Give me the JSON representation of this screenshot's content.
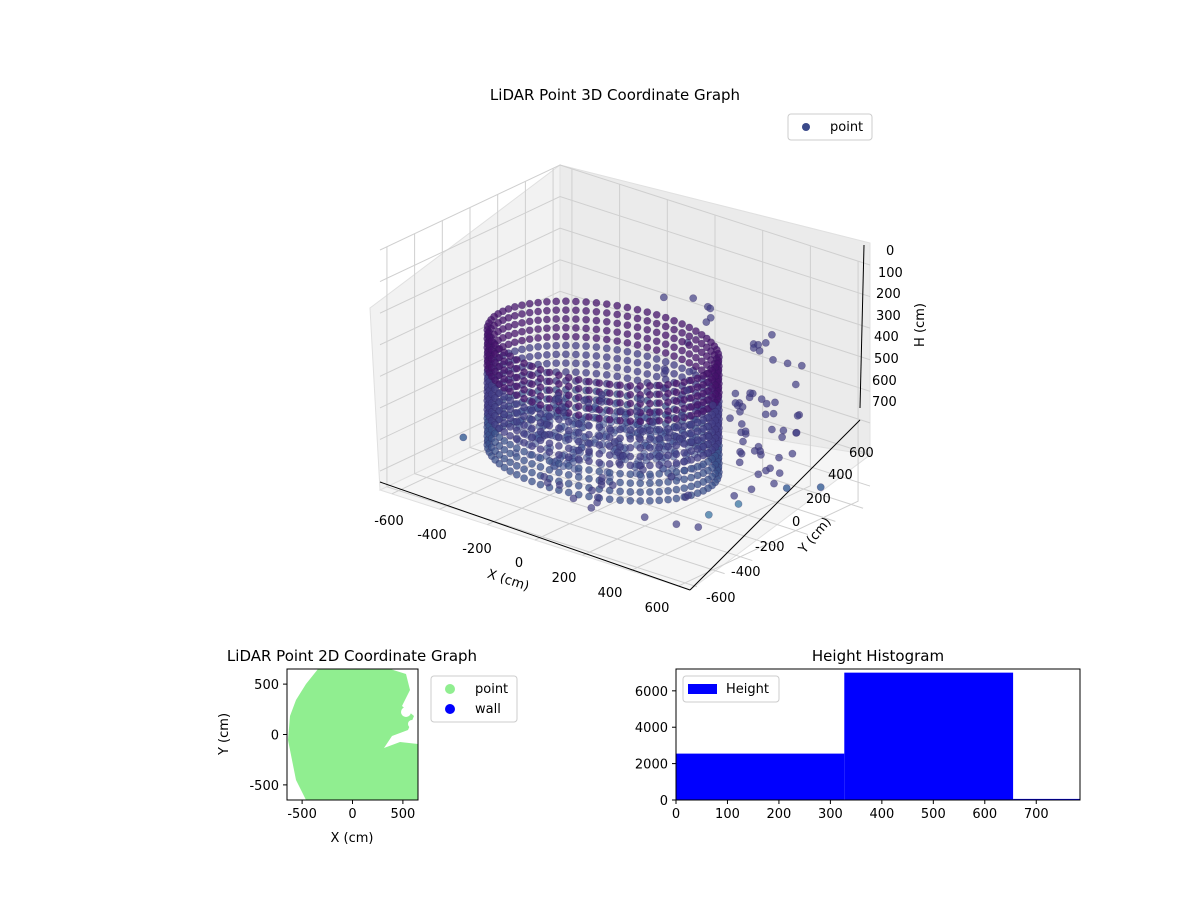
{
  "chart_data": [
    {
      "type": "scatter",
      "title": "LiDAR Point 3D Coordinate Graph",
      "xlabel": "X (cm)",
      "ylabel": "Y (cm)",
      "zlabel": "H (cm)",
      "legend": {
        "entries": [
          "point"
        ],
        "placement": "top-right"
      },
      "xlim": [
        -650,
        650
      ],
      "ylim": [
        -650,
        650
      ],
      "zlim": [
        760,
        0
      ],
      "x_ticks": [
        "-600",
        "-400",
        "-200",
        "0",
        "200",
        "400",
        "600"
      ],
      "y_ticks": [
        "-600",
        "-400",
        "-200",
        "0",
        "200",
        "400",
        "600"
      ],
      "z_ticks": [
        "0",
        "100",
        "200",
        "300",
        "400",
        "500",
        "600",
        "700"
      ],
      "grid": true,
      "colormap": "viridis",
      "series": [
        {
          "name": "point",
          "shape": "ring-wall",
          "ring_center": [
            -150,
            100
          ],
          "ring_radius": 420,
          "h_range": [
            320,
            700
          ],
          "color": "#3b4a8a"
        },
        {
          "name": "point",
          "shape": "floor",
          "floor_h": 620,
          "color": "#4a5b9a"
        }
      ],
      "outliers": [
        {
          "x": 700,
          "y": -600,
          "h": 520,
          "color": "#5a8cb0"
        },
        {
          "x": 650,
          "y": -300,
          "h": 560,
          "color": "#5a8cb0"
        },
        {
          "x": 620,
          "y": 100,
          "h": 600,
          "color": "#4a6ea0"
        },
        {
          "x": -620,
          "y": -100,
          "h": 700,
          "color": "#4a6ea0"
        },
        {
          "x": 600,
          "y": 380,
          "h": 660,
          "color": "#4a6ea0"
        }
      ]
    },
    {
      "type": "scatter",
      "title": "LiDAR Point 2D Coordinate Graph",
      "xlabel": "X (cm)",
      "ylabel": "Y (cm)",
      "xlim": [
        -650,
        650
      ],
      "ylim": [
        -650,
        650
      ],
      "x_ticks": [
        -500,
        0,
        500
      ],
      "y_ticks": [
        -500,
        0,
        500
      ],
      "legend": {
        "entries": [
          "point",
          "wall"
        ],
        "placement": "outside-right"
      },
      "series": [
        {
          "name": "point",
          "color": "#90ee90"
        },
        {
          "name": "wall",
          "color": "#0000ff"
        }
      ]
    },
    {
      "type": "bar",
      "title": "Height Histogram",
      "legend": {
        "entries": [
          "Height"
        ],
        "placement": "top-left"
      },
      "bins": [
        {
          "from": 0,
          "to": 327,
          "count": 2550
        },
        {
          "from": 327,
          "to": 655,
          "count": 7000
        },
        {
          "from": 655,
          "to": 785,
          "count": 60
        }
      ],
      "xlim": [
        0,
        785
      ],
      "ylim": [
        0,
        7200
      ],
      "x_ticks": [
        0,
        100,
        200,
        300,
        400,
        500,
        600,
        700
      ],
      "y_ticks": [
        0,
        2000,
        4000,
        6000
      ],
      "color": "#0000ff"
    }
  ]
}
